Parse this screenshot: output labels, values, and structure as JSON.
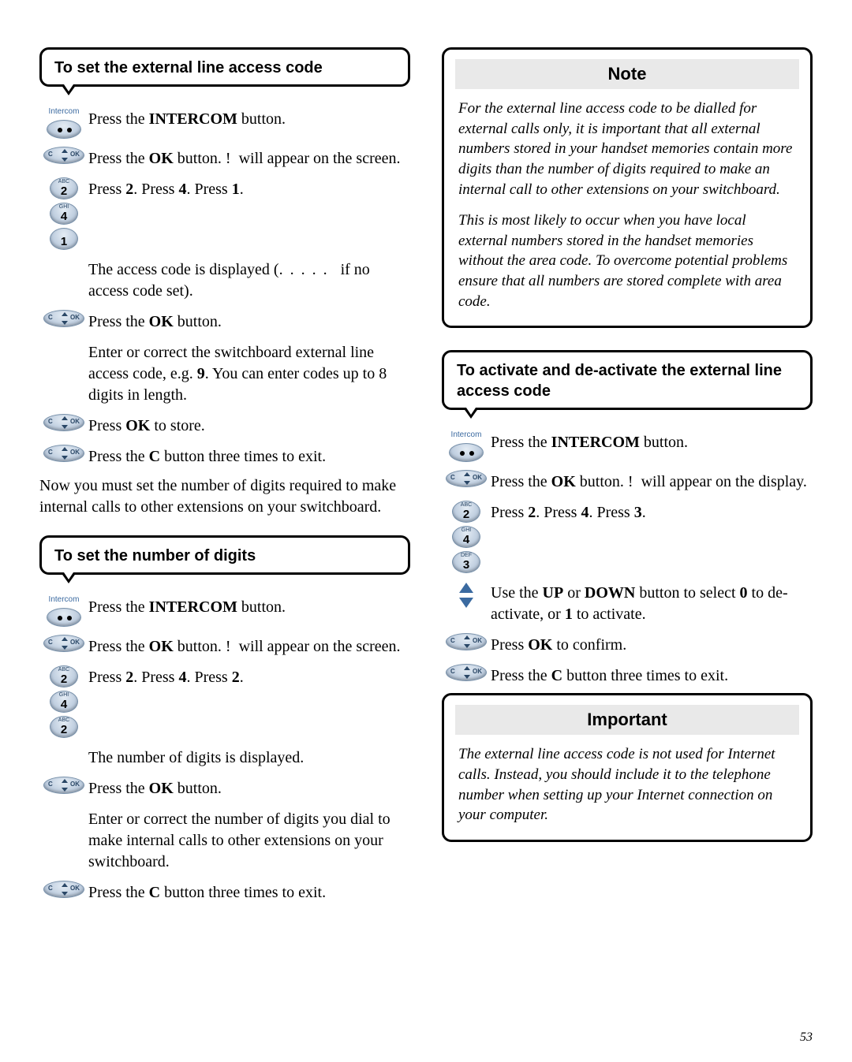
{
  "page_number": "53",
  "left": {
    "section1": {
      "title": "To set the external line access code",
      "steps": [
        {
          "kind": "intercom",
          "html": "Press the <span class='b'>INTERCOM</span> button."
        },
        {
          "kind": "ok",
          "html": "Press the <span class='b'>OK</span> button. !&nbsp;&nbsp;will appear on the screen."
        },
        {
          "kind": "nums241",
          "html": "Press <span class='b'>2</span>. Press <span class='b'>4</span>. Press <span class='b'>1</span>."
        },
        {
          "kind": "none",
          "html": "The access code is displayed (<span class='dots'>. . . . .</span>&nbsp;&nbsp;&nbsp;if no access code set)."
        },
        {
          "kind": "ok",
          "html": "Press the <span class='b'>OK</span> button."
        },
        {
          "kind": "none",
          "html": "Enter or correct the switchboard external line access code, e.g. <span class='b'>9</span>. You can enter codes up to 8 digits in length."
        },
        {
          "kind": "ok",
          "html": "Press <span class='b'>OK</span> to store."
        },
        {
          "kind": "ok",
          "html": "Press the <span class='b'>C</span> button three times to exit."
        }
      ],
      "after": "Now you must set the number of digits required to make internal calls to other extensions on your switchboard."
    },
    "section2": {
      "title": "To set the number of digits",
      "steps": [
        {
          "kind": "intercom",
          "html": "Press the <span class='b'>INTERCOM</span> button."
        },
        {
          "kind": "ok",
          "html": "Press the <span class='b'>OK</span> button. !&nbsp;&nbsp;will appear on the screen."
        },
        {
          "kind": "nums242",
          "html": "Press <span class='b'>2</span>. Press <span class='b'>4</span>. Press <span class='b'>2</span>."
        },
        {
          "kind": "none",
          "html": "The number of digits is displayed."
        },
        {
          "kind": "ok",
          "html": "Press the <span class='b'>OK</span> button."
        },
        {
          "kind": "none",
          "html": "Enter or correct the number of digits you dial to make internal calls to other extensions on your switchboard."
        },
        {
          "kind": "ok",
          "html": "Press the <span class='b'>C</span> button three times to exit."
        }
      ]
    }
  },
  "right": {
    "note": {
      "title": "Note",
      "paras": [
        "For the external line access code to be dialled for external calls only, it is important that all external numbers stored in your handset memories contain more digits than the number of digits required to make an internal call to other extensions on your switchboard.",
        "This is most likely to occur when you have local external numbers stored in the handset memories without the area code. To overcome potential problems ensure that all numbers are stored complete with area code."
      ]
    },
    "section3": {
      "title": "To activate and de-activate the external line access code",
      "steps": [
        {
          "kind": "intercom",
          "html": "Press the <span class='b'>INTERCOM</span> button."
        },
        {
          "kind": "ok",
          "html": "Press the <span class='b'>OK</span> button. !&nbsp;&nbsp;will appear on the display."
        },
        {
          "kind": "nums243",
          "html": "Press <span class='b'>2</span>. Press <span class='b'>4</span>. Press <span class='b'>3</span>."
        },
        {
          "kind": "arrows",
          "html": "Use the <span class='b'>UP</span> or <span class='b'>DOWN</span> button to select <span class='b'>0</span> to de-activate, or <span class='b'>1</span> to activate."
        },
        {
          "kind": "ok",
          "html": "Press <span class='b'>OK</span> to confirm."
        },
        {
          "kind": "ok",
          "html": "Press the <span class='b'>C</span> button three times to exit."
        }
      ]
    },
    "important": {
      "title": "Important",
      "paras": [
        "The external line access code is not used for Internet calls. Instead, you should include it to the telephone number when setting up your Internet connection on your computer."
      ]
    }
  },
  "intercom_label": "Intercom",
  "keypad": {
    "1": "",
    "2": "ABC",
    "3": "DEF",
    "4": "GHI"
  }
}
